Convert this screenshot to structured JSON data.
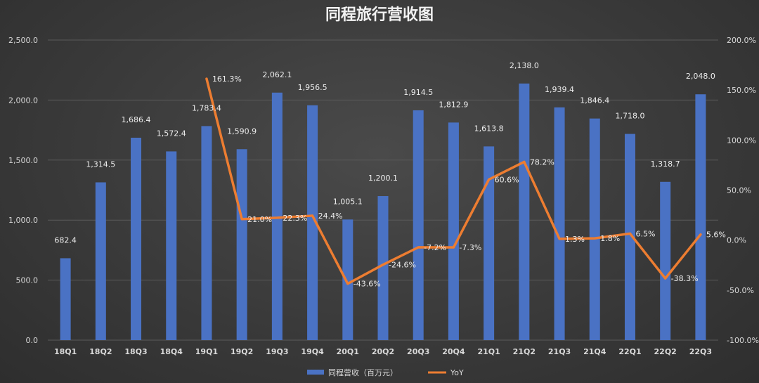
{
  "chart_data": {
    "type": "bar",
    "title": "同程旅行营收图",
    "categories": [
      "18Q1",
      "18Q2",
      "18Q3",
      "18Q4",
      "19Q1",
      "19Q2",
      "19Q3",
      "19Q4",
      "20Q1",
      "20Q2",
      "20Q3",
      "20Q4",
      "21Q1",
      "21Q2",
      "21Q3",
      "21Q4",
      "22Q1",
      "22Q2",
      "22Q3"
    ],
    "series": [
      {
        "name": "同程营收（百万元）",
        "type": "bar",
        "axis": "left",
        "color": "#4a72c4",
        "values": [
          682.4,
          1314.5,
          1686.4,
          1572.4,
          1783.4,
          1590.9,
          2062.1,
          1956.5,
          1005.1,
          1200.1,
          1914.5,
          1812.9,
          1613.8,
          2138.0,
          1939.4,
          1846.4,
          1718.0,
          1318.7,
          2048.0
        ],
        "labels": [
          "682.4",
          "1,314.5",
          "1,686.4",
          "1,572.4",
          "1,783.4",
          "1,590.9",
          "2,062.1",
          "1,956.5",
          "1,005.1",
          "1,200.1",
          "1,914.5",
          "1,812.9",
          "1,613.8",
          "2,138.0",
          "1,939.4",
          "1,846.4",
          "1,718.0",
          "1,318.7",
          "2,048.0"
        ]
      },
      {
        "name": "YoY",
        "type": "line",
        "axis": "right",
        "color": "#ed7d31",
        "values": [
          null,
          null,
          null,
          null,
          161.3,
          21.0,
          22.3,
          24.4,
          -43.6,
          -24.6,
          -7.2,
          -7.3,
          60.6,
          78.2,
          1.3,
          1.8,
          6.5,
          -38.3,
          5.6
        ],
        "labels": [
          "",
          "",
          "",
          "",
          "161.3%",
          "21.0%",
          "22.3%",
          "24.4%",
          "-43.6%",
          "-24.6%",
          "-7.2%",
          "-7.3%",
          "60.6%",
          "78.2%",
          "1.3%",
          "1.8%",
          "6.5%",
          "-38.3%",
          "5.6%"
        ]
      }
    ],
    "y_left": {
      "lim": [
        0,
        2500
      ],
      "ticks": [
        "0.0",
        "500.0",
        "1,000.0",
        "1,500.0",
        "2,000.0",
        "2,500.0"
      ]
    },
    "y_right": {
      "lim": [
        -100,
        200
      ],
      "ticks": [
        "-100.0%",
        "-50.0%",
        "0.0%",
        "50.0%",
        "100.0%",
        "150.0%",
        "200.0%"
      ]
    },
    "grid": true,
    "legend": "bottom"
  }
}
